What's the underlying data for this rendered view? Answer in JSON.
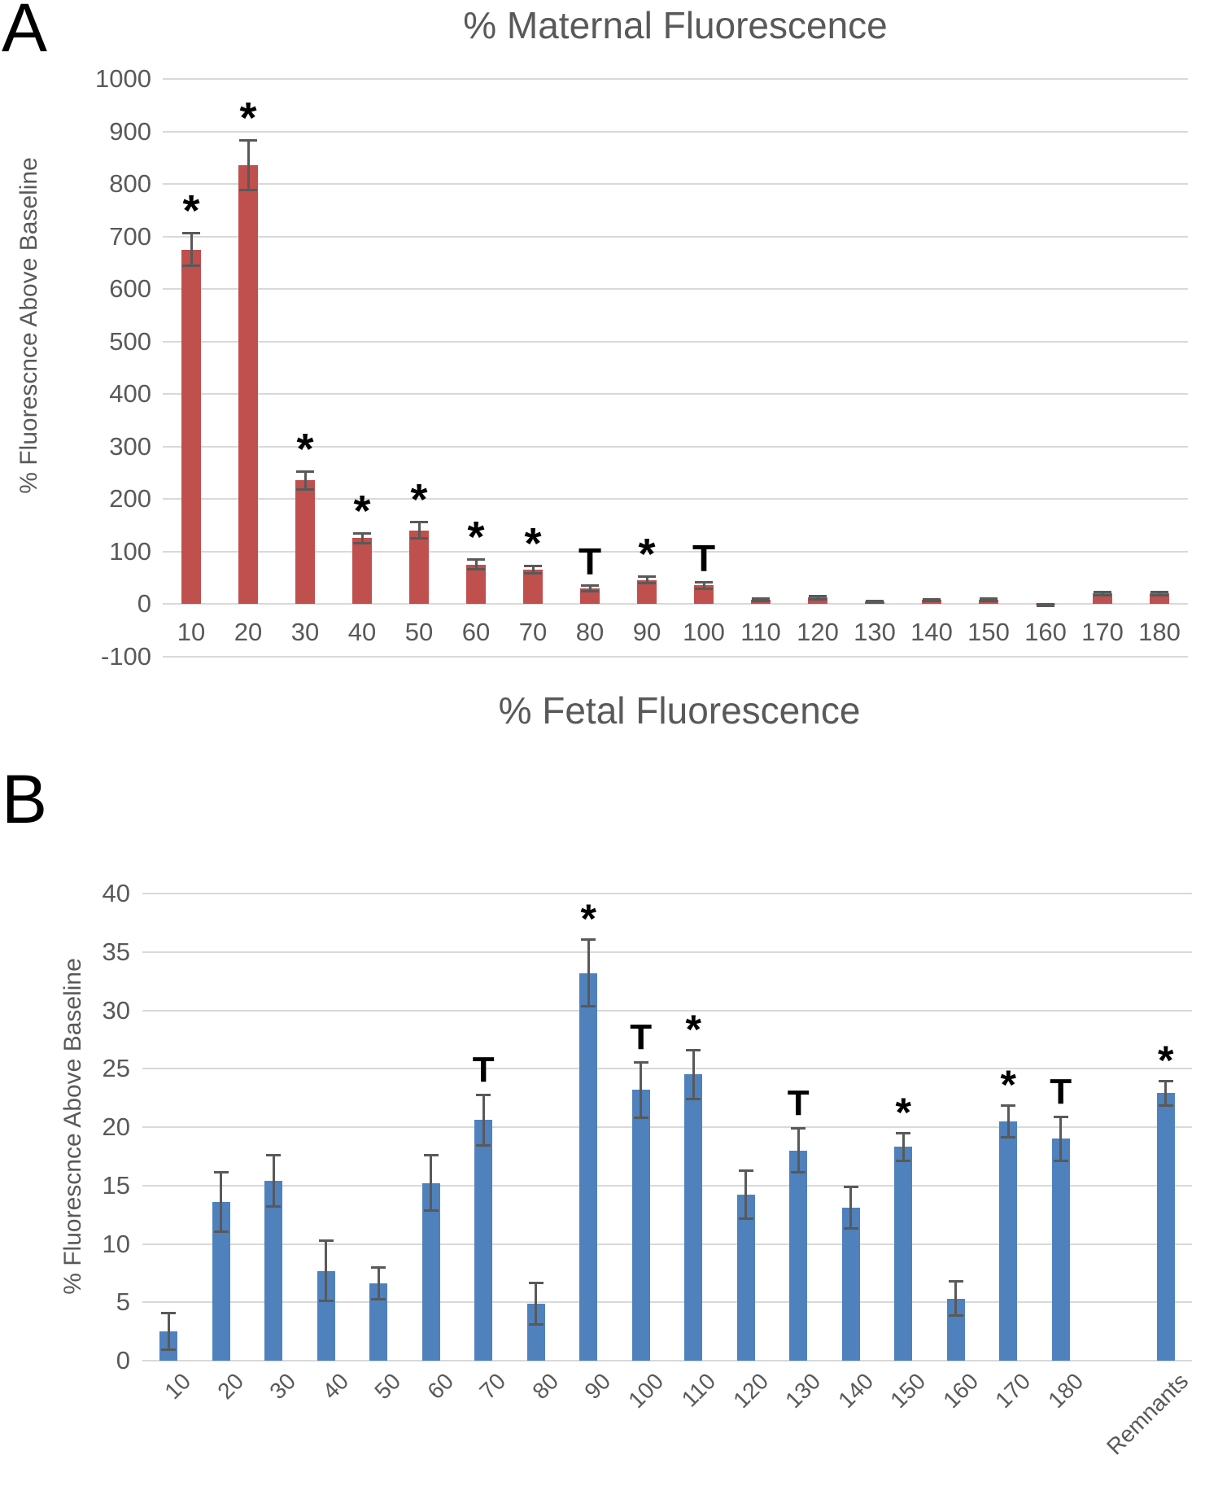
{
  "figure": {
    "panel_a_letter": "A",
    "panel_b_letter": "B"
  },
  "colors": {
    "maternal_bar": "#C0504D",
    "fetal_bar": "#4F81BD",
    "error_bar": "#595959",
    "gridline": "#D9D9D9",
    "axis_text": "#595959",
    "title_text": "#595959",
    "annotation": "#000000"
  },
  "chart_data": [
    {
      "id": "maternal",
      "type": "bar",
      "title": "% Maternal Fluorescence",
      "ylabel": "% Fluorescnce Above Baseline",
      "xlabel": "",
      "legend": "none",
      "grid": true,
      "ylim": [
        -100,
        1000
      ],
      "ytick_step": 100,
      "bar_color": "#C0504D",
      "error_color": "#595959",
      "categories": [
        "10",
        "20",
        "30",
        "40",
        "50",
        "60",
        "70",
        "80",
        "90",
        "100",
        "110",
        "120",
        "130",
        "140",
        "150",
        "160",
        "170",
        "180"
      ],
      "values": [
        675,
        835,
        235,
        125,
        140,
        75,
        65,
        30,
        45,
        35,
        8,
        12,
        4,
        7,
        8,
        -2,
        20,
        20
      ],
      "errors": [
        32,
        48,
        18,
        10,
        16,
        10,
        8,
        6,
        7,
        7,
        3,
        4,
        2,
        3,
        3,
        2,
        4,
        4
      ],
      "annotations": [
        "*",
        "*",
        "*",
        "*",
        "*",
        "*",
        "*",
        "T",
        "*",
        "T",
        "",
        "",
        "",
        "",
        "",
        "",
        "",
        ""
      ]
    },
    {
      "id": "fetal",
      "type": "bar",
      "title": "% Fetal Fluorescence",
      "ylabel": "% Fluorescnce Above Baseline",
      "xlabel": "",
      "legend": "none",
      "grid": true,
      "ylim": [
        0,
        40
      ],
      "ytick_step": 5,
      "x_tick_rotation": 45,
      "bar_color": "#4F81BD",
      "error_color": "#595959",
      "categories": [
        "10",
        "20",
        "30",
        "40",
        "50",
        "60",
        "70",
        "80",
        "90",
        "100",
        "110",
        "120",
        "130",
        "140",
        "150",
        "160",
        "170",
        "180",
        "Remnants"
      ],
      "slot_index": [
        0,
        1,
        2,
        3,
        4,
        5,
        6,
        7,
        8,
        9,
        10,
        11,
        12,
        13,
        14,
        15,
        16,
        17,
        19
      ],
      "values": [
        2.5,
        13.6,
        15.4,
        7.7,
        6.6,
        15.2,
        20.6,
        4.9,
        33.2,
        23.2,
        24.5,
        14.2,
        18.0,
        13.1,
        18.3,
        5.3,
        20.5,
        19.0,
        22.9
      ],
      "errors": [
        1.6,
        2.6,
        2.2,
        2.6,
        1.4,
        2.4,
        2.2,
        1.8,
        2.9,
        2.4,
        2.1,
        2.1,
        1.9,
        1.8,
        1.2,
        1.5,
        1.4,
        1.9,
        1.1
      ],
      "annotations": [
        "",
        "",
        "",
        "",
        "",
        "",
        "T",
        "",
        "*",
        "T",
        "*",
        "",
        "T",
        "",
        "*",
        "",
        "*",
        "T",
        "*"
      ]
    }
  ]
}
